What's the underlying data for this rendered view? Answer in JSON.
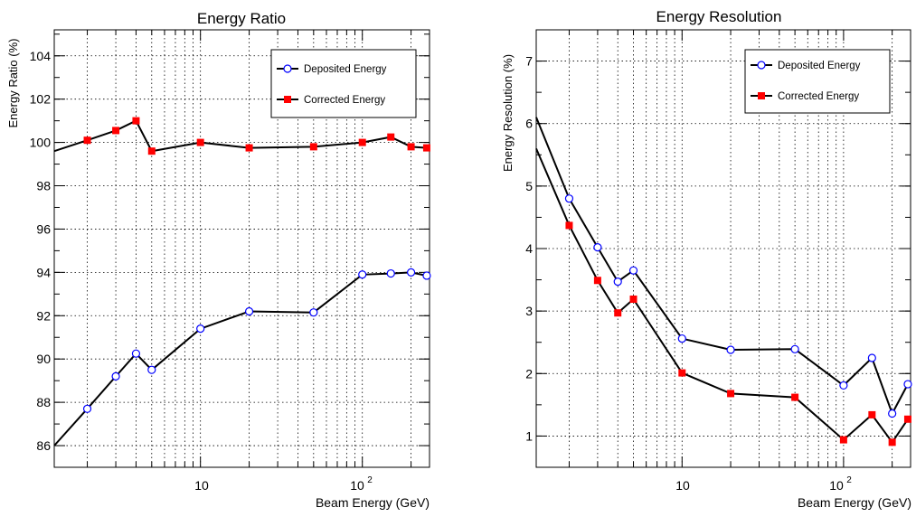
{
  "colors": {
    "deposited": "#0000ff",
    "corrected": "#ff0000",
    "line": "#000000",
    "grid": "#000000"
  },
  "chart_data": [
    {
      "type": "line",
      "title": "Energy Ratio",
      "xlabel": "Beam Energy (GeV)",
      "ylabel": "Energy Ratio (%)",
      "xscale": "log",
      "xlim": [
        1.25,
        260
      ],
      "ylim": [
        85.0,
        105.2
      ],
      "grid": true,
      "legend_position": "top-right",
      "x": [
        1.25,
        2,
        3,
        4,
        5,
        10,
        20,
        50,
        100,
        150,
        200,
        250
      ],
      "yticks": [
        86,
        88,
        90,
        92,
        94,
        96,
        98,
        100,
        102,
        104
      ],
      "series": [
        {
          "name": "Deposited Energy",
          "marker": "open-circle",
          "values": [
            86.0,
            87.7,
            89.2,
            90.25,
            89.5,
            91.4,
            92.2,
            92.15,
            93.9,
            93.95,
            94.0,
            93.85
          ]
        },
        {
          "name": "Corrected Energy",
          "marker": "filled-square",
          "values": [
            99.6,
            100.1,
            100.55,
            101.0,
            99.6,
            100.0,
            99.75,
            99.8,
            100.0,
            100.25,
            99.8,
            99.75
          ]
        }
      ]
    },
    {
      "type": "line",
      "title": "Energy Resolution",
      "xlabel": "Beam Energy (GeV)",
      "ylabel": "Energy Resolution (%)",
      "xscale": "log",
      "xlim": [
        1.25,
        260
      ],
      "ylim": [
        0.5,
        7.5
      ],
      "grid": true,
      "legend_position": "top-right",
      "x": [
        1.25,
        2,
        3,
        4,
        5,
        10,
        20,
        50,
        100,
        150,
        200,
        250
      ],
      "yticks": [
        1,
        2,
        3,
        4,
        5,
        6,
        7
      ],
      "series": [
        {
          "name": "Deposited Energy",
          "marker": "open-circle",
          "values": [
            6.1,
            4.8,
            4.02,
            3.47,
            3.65,
            2.56,
            2.38,
            2.39,
            1.81,
            2.25,
            1.36,
            1.83
          ]
        },
        {
          "name": "Corrected Energy",
          "marker": "filled-square",
          "values": [
            5.6,
            4.37,
            3.49,
            2.97,
            3.19,
            2.01,
            1.68,
            1.62,
            0.94,
            1.34,
            0.9,
            1.27
          ]
        }
      ]
    }
  ]
}
